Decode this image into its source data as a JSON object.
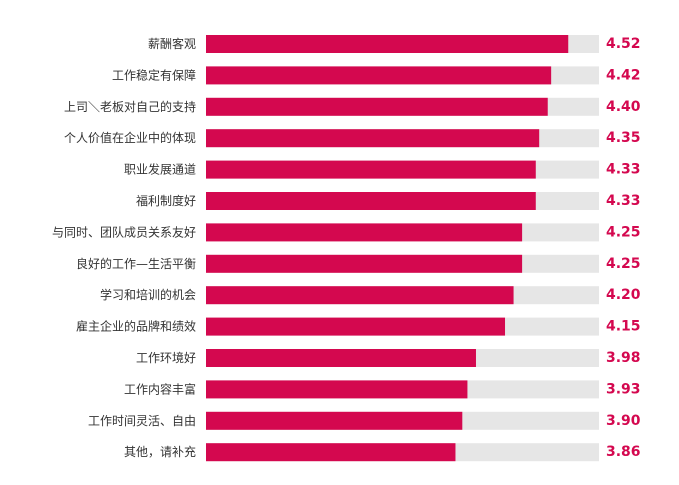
{
  "chart_data": {
    "type": "bar",
    "orientation": "horizontal",
    "categories": [
      "薪酬客观",
      "工作稳定有保障",
      "上司＼老板对自己的支持",
      "个人价值在企业中的体现",
      "职业发展通道",
      "福利制度好",
      "与同时、团队成员关系友好",
      "良好的工作—生活平衡",
      "学习和培训的机会",
      "雇主企业的品牌和绩效",
      "工作环境好",
      "工作内容丰富",
      "工作时间灵活、自由",
      "其他，请补充"
    ],
    "values": [
      4.52,
      4.42,
      4.4,
      4.35,
      4.33,
      4.33,
      4.25,
      4.25,
      4.2,
      4.15,
      3.98,
      3.93,
      3.9,
      3.86
    ],
    "value_labels": [
      "4.52",
      "4.42",
      "4.40",
      "4.35",
      "4.33",
      "4.33",
      "4.25",
      "4.25",
      "4.20",
      "4.15",
      "3.98",
      "3.93",
      "3.90",
      "3.86"
    ],
    "xlim": [
      2.4,
      4.7
    ],
    "grid": false,
    "legend": "none",
    "colors": {
      "bar": "#d4084f",
      "track": "#e6e6e6",
      "value_text": "#d4084f",
      "label_text": "#333333"
    }
  }
}
